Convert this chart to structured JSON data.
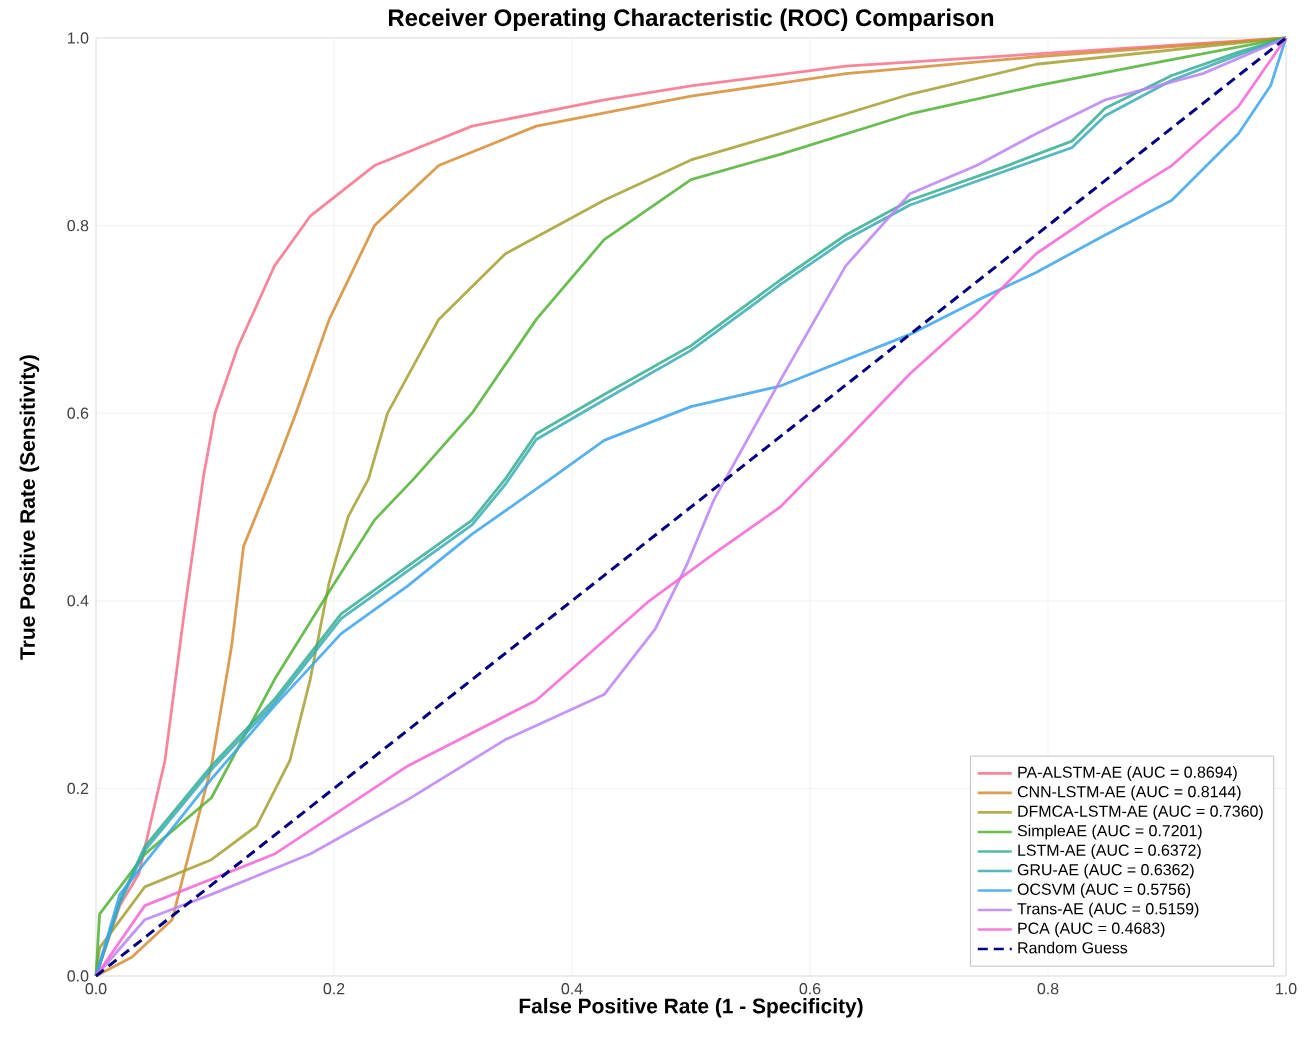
{
  "chart_data": {
    "type": "line",
    "title": "Receiver Operating Characteristic (ROC) Comparison",
    "xlabel": "False Positive Rate (1 - Specificity)",
    "ylabel": "True Positive Rate (Sensitivity)",
    "xlim": [
      0,
      1
    ],
    "ylim": [
      0,
      1
    ],
    "xticks": [
      {
        "value": 0,
        "label": "0.0"
      },
      {
        "value": 0.2,
        "label": "0.2"
      },
      {
        "value": 0.4,
        "label": "0.4"
      },
      {
        "value": 0.6,
        "label": "0.6"
      },
      {
        "value": 0.8,
        "label": "0.8"
      },
      {
        "value": 1,
        "label": "1.0"
      }
    ],
    "yticks": [
      {
        "value": 0,
        "label": "0.0"
      },
      {
        "value": 0.2,
        "label": "0.2"
      },
      {
        "value": 0.4,
        "label": "0.4"
      },
      {
        "value": 0.6,
        "label": "0.6"
      },
      {
        "value": 0.8,
        "label": "0.8"
      },
      {
        "value": 1,
        "label": "1.0"
      }
    ],
    "grid": true,
    "legend": "bottom right",
    "marker": "none",
    "line_style": "solid",
    "series": [
      {
        "name": "PA-ALSTM-AE (AUC = 0.8694)",
        "color": "#f77189",
        "x": [
          0,
          0.02,
          0.036,
          0.058,
          0.074,
          0.09,
          0.1,
          0.119,
          0.15,
          0.18,
          0.234,
          0.316,
          0.427,
          0.5,
          0.63,
          0.79,
          1
        ],
        "values": [
          0,
          0.075,
          0.109,
          0.23,
          0.386,
          0.53,
          0.6,
          0.67,
          0.757,
          0.81,
          0.864,
          0.906,
          0.934,
          0.949,
          0.97,
          0.983,
          1
        ]
      },
      {
        "name": "CNN-LSTM-AE (AUC = 0.8144)",
        "color": "#d58c32",
        "x": [
          0,
          0.03,
          0.064,
          0.097,
          0.114,
          0.124,
          0.147,
          0.168,
          0.196,
          0.234,
          0.288,
          0.37,
          0.5,
          0.63,
          0.79,
          1
        ],
        "values": [
          0,
          0.02,
          0.06,
          0.224,
          0.352,
          0.458,
          0.53,
          0.6,
          0.7,
          0.8,
          0.864,
          0.906,
          0.938,
          0.962,
          0.98,
          1
        ]
      },
      {
        "name": "DFMCA-LSTM-AE (AUC = 0.7360)",
        "color": "#a4a031",
        "x": [
          0,
          0.003,
          0.041,
          0.097,
          0.135,
          0.163,
          0.18,
          0.196,
          0.212,
          0.229,
          0.245,
          0.288,
          0.344,
          0.427,
          0.5,
          0.575,
          0.684,
          0.79,
          1
        ],
        "values": [
          0,
          0.03,
          0.095,
          0.124,
          0.16,
          0.23,
          0.316,
          0.42,
          0.49,
          0.53,
          0.6,
          0.7,
          0.77,
          0.827,
          0.87,
          0.898,
          0.94,
          0.972,
          1
        ]
      },
      {
        "name": "SimpleAE (AUC = 0.7201)",
        "color": "#50b131",
        "x": [
          0,
          0.003,
          0.041,
          0.097,
          0.15,
          0.196,
          0.234,
          0.267,
          0.316,
          0.37,
          0.427,
          0.5,
          0.575,
          0.684,
          0.79,
          0.904,
          1
        ],
        "values": [
          0,
          0.066,
          0.13,
          0.19,
          0.316,
          0.41,
          0.486,
          0.53,
          0.6,
          0.7,
          0.785,
          0.849,
          0.876,
          0.919,
          0.949,
          0.977,
          1
        ]
      },
      {
        "name": "LSTM-AE (AUC = 0.6372)",
        "color": "#34ae91",
        "x": [
          0,
          0.02,
          0.041,
          0.097,
          0.15,
          0.206,
          0.262,
          0.316,
          0.344,
          0.37,
          0.427,
          0.5,
          0.575,
          0.63,
          0.684,
          0.766,
          0.82,
          0.848,
          0.904,
          0.96,
          1
        ],
        "values": [
          0,
          0.08,
          0.138,
          0.224,
          0.295,
          0.386,
          0.437,
          0.486,
          0.53,
          0.578,
          0.62,
          0.672,
          0.742,
          0.79,
          0.827,
          0.864,
          0.89,
          0.925,
          0.96,
          0.985,
          1
        ]
      },
      {
        "name": "GRU-AE (AUC = 0.6362)",
        "color": "#37abb5",
        "x": [
          0,
          0.02,
          0.041,
          0.097,
          0.15,
          0.206,
          0.262,
          0.316,
          0.344,
          0.37,
          0.427,
          0.5,
          0.575,
          0.63,
          0.684,
          0.766,
          0.82,
          0.848,
          0.904,
          0.96,
          1
        ],
        "values": [
          0,
          0.078,
          0.134,
          0.22,
          0.291,
          0.381,
          0.432,
          0.481,
          0.524,
          0.572,
          0.614,
          0.667,
          0.737,
          0.785,
          0.822,
          0.859,
          0.883,
          0.917,
          0.955,
          0.982,
          1
        ]
      },
      {
        "name": "OCSVM (AUC = 0.5756)",
        "color": "#3ba3ec",
        "x": [
          0,
          0.02,
          0.097,
          0.15,
          0.206,
          0.262,
          0.316,
          0.382,
          0.427,
          0.5,
          0.575,
          0.684,
          0.74,
          0.79,
          0.848,
          0.904,
          0.96,
          0.987,
          1
        ],
        "values": [
          0,
          0.087,
          0.21,
          0.288,
          0.365,
          0.416,
          0.471,
          0.53,
          0.571,
          0.607,
          0.629,
          0.684,
          0.72,
          0.75,
          0.79,
          0.827,
          0.898,
          0.949,
          1
        ]
      },
      {
        "name": "Trans-AE (AUC = 0.5159)",
        "color": "#bb83f4",
        "x": [
          0,
          0.041,
          0.097,
          0.18,
          0.262,
          0.344,
          0.427,
          0.47,
          0.497,
          0.519,
          0.575,
          0.63,
          0.684,
          0.74,
          0.79,
          0.848,
          0.93,
          1
        ],
        "values": [
          0,
          0.06,
          0.087,
          0.13,
          0.188,
          0.252,
          0.3,
          0.37,
          0.44,
          0.507,
          0.635,
          0.757,
          0.834,
          0.864,
          0.898,
          0.934,
          0.962,
          1
        ]
      },
      {
        "name": "PCA (AUC = 0.4683)",
        "color": "#f564d4",
        "x": [
          0,
          0.041,
          0.15,
          0.262,
          0.37,
          0.465,
          0.519,
          0.575,
          0.63,
          0.684,
          0.74,
          0.79,
          0.848,
          0.904,
          0.96,
          1
        ],
        "values": [
          0,
          0.075,
          0.13,
          0.224,
          0.294,
          0.4,
          0.45,
          0.5,
          0.571,
          0.642,
          0.706,
          0.77,
          0.82,
          0.864,
          0.927,
          1
        ]
      },
      {
        "name": "Random Guess",
        "color": "#000080",
        "line_style": "dashed",
        "x": [
          0,
          1
        ],
        "values": [
          0,
          1
        ]
      }
    ]
  }
}
